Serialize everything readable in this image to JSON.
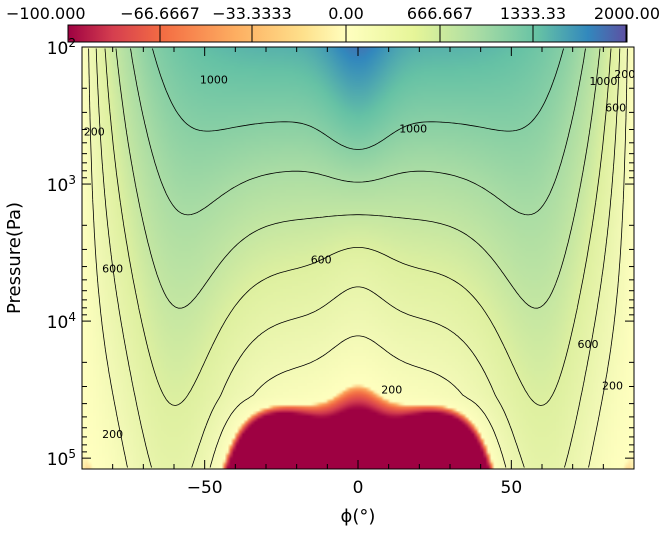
{
  "chart_data": {
    "type": "heatmap",
    "title": "",
    "xlabel": "ϕ(°)",
    "ylabel": "Pressure(Pa)",
    "xlim": [
      -90,
      90
    ],
    "ylim": [
      100,
      120000
    ],
    "y_scale": "log",
    "y_inverted": true,
    "x_ticks": [
      -50,
      0,
      50
    ],
    "x_tick_labels": [
      "−50",
      "0",
      "50"
    ],
    "y_ticks": [
      100,
      1000,
      10000,
      100000
    ],
    "y_tick_labels": [
      {
        "base": "10",
        "exp": "2"
      },
      {
        "base": "10",
        "exp": "3"
      },
      {
        "base": "10",
        "exp": "4"
      },
      {
        "base": "10",
        "exp": "5"
      }
    ],
    "colorbar": {
      "tick_labels": [
        "−100.000",
        "−66.6667",
        "−33.3333",
        "0.00",
        "666.667",
        "1333.33",
        "2000.00"
      ],
      "range": [
        -100,
        2000
      ]
    },
    "contour_levels": [
      200,
      400,
      600,
      800,
      1000,
      1200
    ],
    "contour_labels": [
      {
        "text": "1000",
        "phi": -47,
        "p": 175
      },
      {
        "text": "1000",
        "phi": 18,
        "p": 400
      },
      {
        "text": "1000",
        "phi": 80,
        "p": 180
      },
      {
        "text": "600",
        "phi": 84,
        "p": 280
      },
      {
        "text": "200",
        "phi": 87,
        "p": 160
      },
      {
        "text": "200",
        "phi": -86,
        "p": 420
      },
      {
        "text": "600",
        "phi": -80,
        "p": 4200
      },
      {
        "text": "600",
        "phi": -12,
        "p": 3600
      },
      {
        "text": "600",
        "phi": 75,
        "p": 15000
      },
      {
        "text": "200",
        "phi": 11,
        "p": 32000
      },
      {
        "text": "200",
        "phi": 83,
        "p": 30000
      },
      {
        "text": "200",
        "phi": -80,
        "p": 68000
      }
    ],
    "model_note": ""
  }
}
